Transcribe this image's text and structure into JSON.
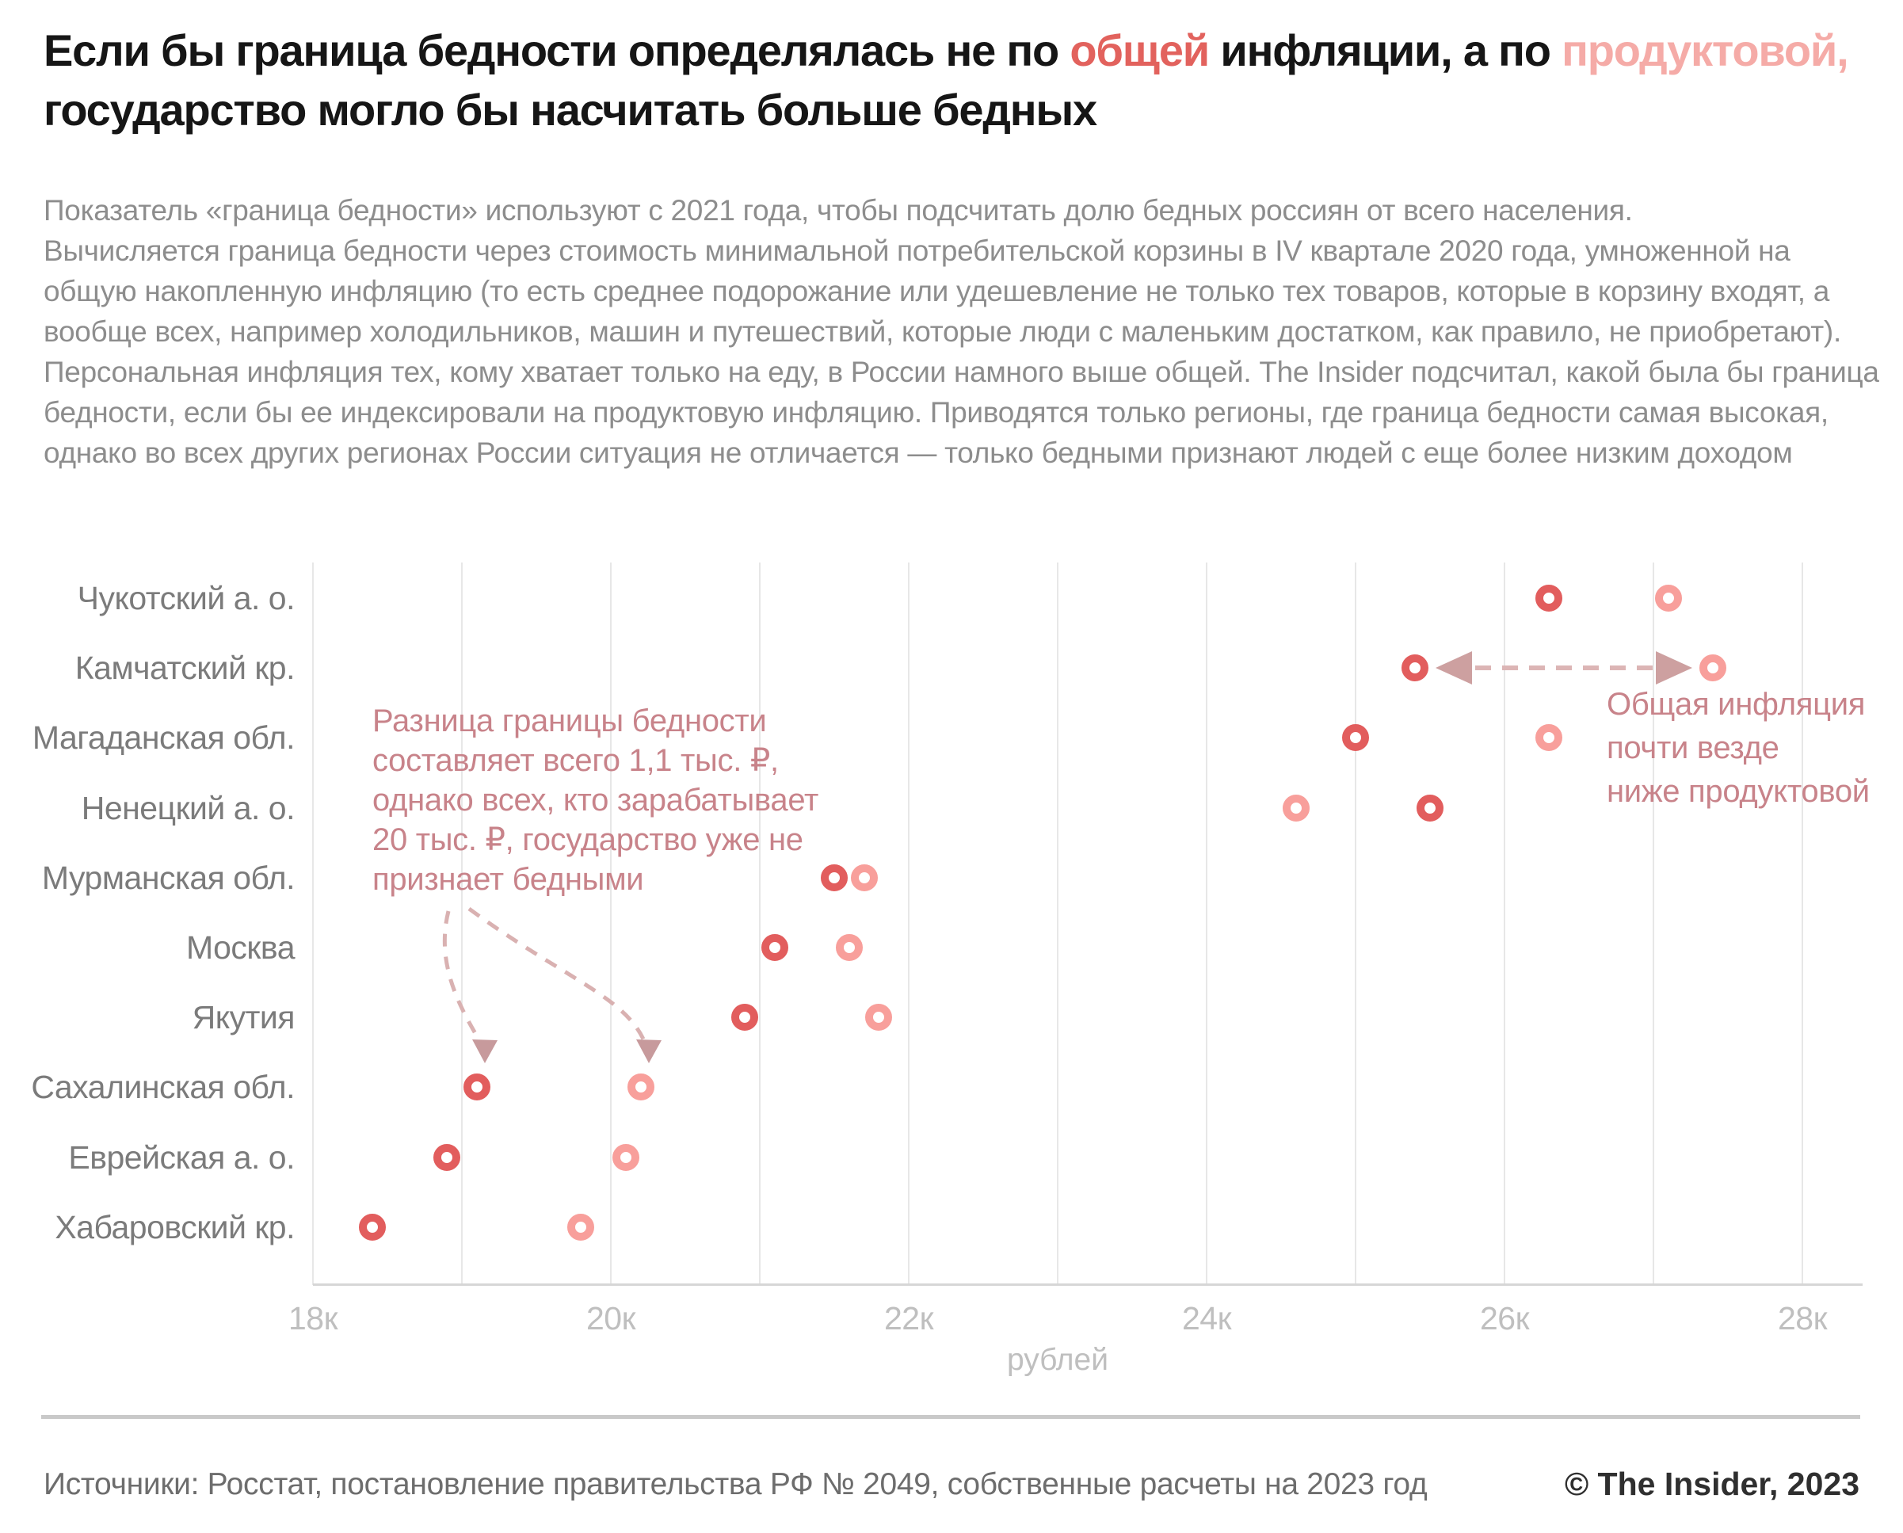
{
  "title": {
    "seg1": "Если бы граница бедности определялась не по ",
    "highlight_general": "общей",
    "seg2": " инфляции, а по ",
    "highlight_food": "продуктовой,",
    "seg3": "государство могло бы насчитать больше бедных"
  },
  "intro": [
    "Показатель «граница бедности» используют с 2021 года, чтобы подсчитать долю бедных россиян от всего населения.",
    "Вычисляется граница бедности через стоимость минимальной потребительской корзины в IV квартале 2020 года, умноженной на общую накопленную инфляцию (то есть среднее подорожание или удешевление не только тех товаров, которые в корзину входят, а вообще всех, например холодильников, машин и путешествий, которые люди с маленьким достатком, как правило, не приобретают). Персональная инфляция тех, кому хватает только на еду, в России намного выше общей. The Insider подсчитал, какой была бы граница бедности, если бы ее индексировали на продуктовую инфляцию. Приводятся только регионы, где граница бедности самая высокая, однако во всех других регионах России ситуация не отличается — только бедными признают людей с еще более низким доходом"
  ],
  "annotations": {
    "left": [
      "Разница границы бедности",
      "составляет всего 1,1 тыс. ₽,",
      "однако всех, кто зарабатывает",
      "20 тыс. ₽, государство уже не",
      "признает бедными"
    ],
    "right": [
      "Общая инфляция",
      "почти везде",
      "ниже продуктовой"
    ]
  },
  "chart_data": {
    "type": "scatter",
    "subtype": "horizontal-dot-plot",
    "categories": [
      "Чукотский а. о.",
      "Камчатский кр.",
      "Магаданская обл.",
      "Ненецкий а. о.",
      "Мурманская обл.",
      "Москва",
      "Якутия",
      "Сахалинская обл.",
      "Еврейская а. о.",
      "Хабаровский кр."
    ],
    "series": [
      {
        "name": "граница бедности по продуктовой инфляции",
        "color": "#f89f9b",
        "values": [
          27100,
          27400,
          26300,
          24600,
          21700,
          21600,
          21800,
          20200,
          20100,
          19800
        ]
      },
      {
        "name": "граница бедности по общей инфляции",
        "color": "#e25d5d",
        "values": [
          26300,
          25400,
          25000,
          25500,
          21500,
          21100,
          20900,
          19100,
          18900,
          18400
        ]
      }
    ],
    "xlabel": "рублей",
    "x_ticks": [
      {
        "label": "18к",
        "value": 18000
      },
      {
        "label": "20к",
        "value": 20000
      },
      {
        "label": "22к",
        "value": 22000
      },
      {
        "label": "24к",
        "value": 24000
      },
      {
        "label": "26к",
        "value": 26000
      },
      {
        "label": "28к",
        "value": 28000
      }
    ],
    "xlim": [
      18000,
      28000
    ],
    "gridline_step": 1000,
    "grid": "vertical",
    "legend": "none"
  },
  "footer": {
    "sources": "Источники: Росстат, постановление правительства РФ № 2049, собственные расчеты на 2023 год",
    "credit": "© The Insider, 2023"
  }
}
